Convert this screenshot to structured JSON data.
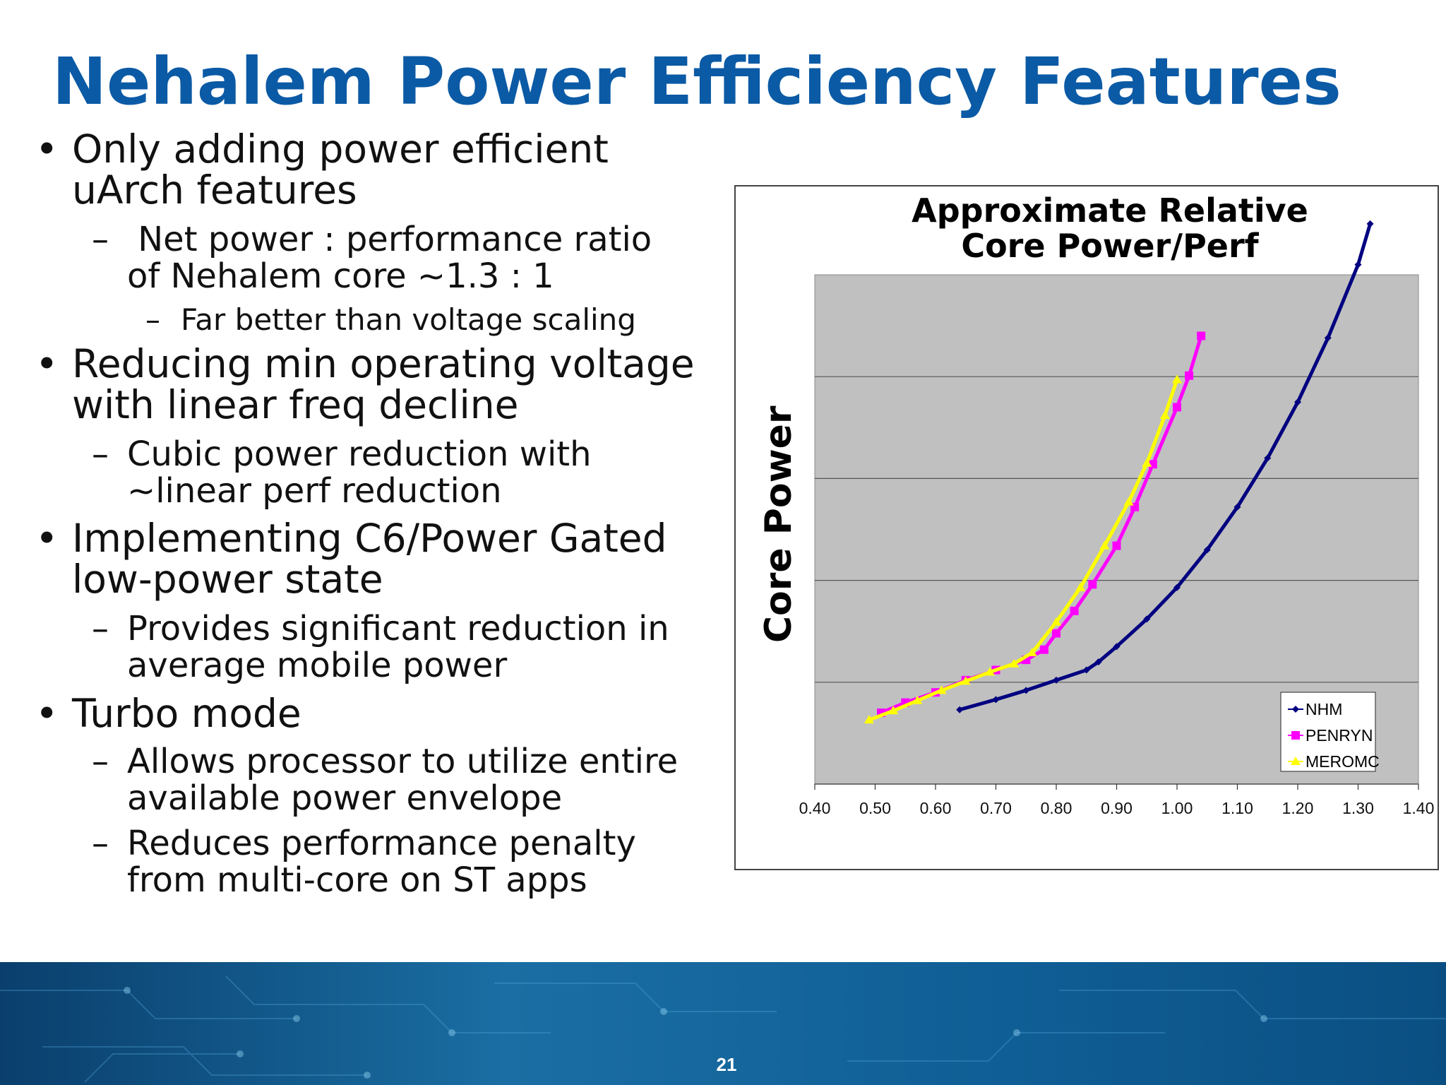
{
  "slide": {
    "title": "Nehalem Power Efficiency Features",
    "page_number": "21"
  },
  "bullets": [
    {
      "level": 1,
      "bullet": "•",
      "lines": [
        "Only adding power efficient",
        "uArch features"
      ]
    },
    {
      "level": 2,
      "bullet": "–",
      "lines": [
        " Net power : performance ratio",
        "of Nehalem core ~1.3 : 1"
      ]
    },
    {
      "level": 3,
      "bullet": "–",
      "lines": [
        "Far better than voltage scaling"
      ]
    },
    {
      "level": 1,
      "bullet": "•",
      "lines": [
        "Reducing min operating voltage",
        "with linear freq decline"
      ]
    },
    {
      "level": 2,
      "bullet": "–",
      "lines": [
        "Cubic power reduction with",
        "~linear perf reduction"
      ]
    },
    {
      "level": 1,
      "bullet": "•",
      "lines": [
        "Implementing C6/Power Gated",
        "low-power state"
      ]
    },
    {
      "level": 2,
      "bullet": "–",
      "lines": [
        "Provides significant reduction in",
        "average mobile power"
      ]
    },
    {
      "level": 1,
      "bullet": "•",
      "lines": [
        "Turbo mode"
      ]
    },
    {
      "level": 2,
      "bullet": "–",
      "lines": [
        "Allows processor to utilize entire",
        "available power envelope"
      ]
    },
    {
      "level": 2,
      "bullet": "–",
      "lines": [
        "Reduces performance penalty",
        "from multi-core on ST apps"
      ]
    }
  ],
  "chart_data": {
    "type": "line",
    "title": [
      "Approximate Relative",
      "Core Power/Perf"
    ],
    "xlabel": "",
    "ylabel": "Core Power",
    "xlim": [
      0.4,
      1.4
    ],
    "ylim": [
      0,
      5
    ],
    "x_ticks": [
      "0.40",
      "0.50",
      "0.60",
      "0.70",
      "0.80",
      "0.90",
      "1.00",
      "1.10",
      "1.20",
      "1.30",
      "1.40"
    ],
    "y_ticks_labeled": false,
    "grid": "horizontal",
    "plot_background": "#c0c0c0",
    "legend_position": "bottom-right",
    "series": [
      {
        "name": "NHM",
        "color": "#000080",
        "marker": "diamond",
        "x": [
          0.64,
          0.7,
          0.75,
          0.8,
          0.85,
          0.87,
          0.9,
          0.95,
          1.0,
          1.05,
          1.1,
          1.15,
          1.2,
          1.25,
          1.3,
          1.32
        ],
        "y": [
          0.73,
          0.83,
          0.92,
          1.02,
          1.12,
          1.2,
          1.35,
          1.62,
          1.93,
          2.3,
          2.72,
          3.2,
          3.75,
          4.38,
          5.1,
          5.5
        ]
      },
      {
        "name": "PENRYN",
        "color": "#ff00ff",
        "marker": "square",
        "x": [
          0.51,
          0.55,
          0.6,
          0.65,
          0.7,
          0.75,
          0.78,
          0.8,
          0.83,
          0.86,
          0.9,
          0.93,
          0.96,
          1.0,
          1.02,
          1.04
        ],
        "y": [
          0.7,
          0.8,
          0.9,
          1.02,
          1.12,
          1.22,
          1.32,
          1.48,
          1.7,
          1.96,
          2.34,
          2.72,
          3.14,
          3.7,
          4.01,
          4.4
        ]
      },
      {
        "name": "MEROMC",
        "color": "#ffff00",
        "marker": "triangle",
        "x": [
          0.49,
          0.53,
          0.57,
          0.61,
          0.65,
          0.69,
          0.73,
          0.76,
          0.8,
          0.84,
          0.88,
          0.92,
          0.95,
          0.98,
          1.0
        ],
        "y": [
          0.63,
          0.72,
          0.82,
          0.92,
          1.01,
          1.1,
          1.18,
          1.29,
          1.59,
          1.93,
          2.34,
          2.77,
          3.15,
          3.62,
          3.97
        ]
      }
    ]
  }
}
